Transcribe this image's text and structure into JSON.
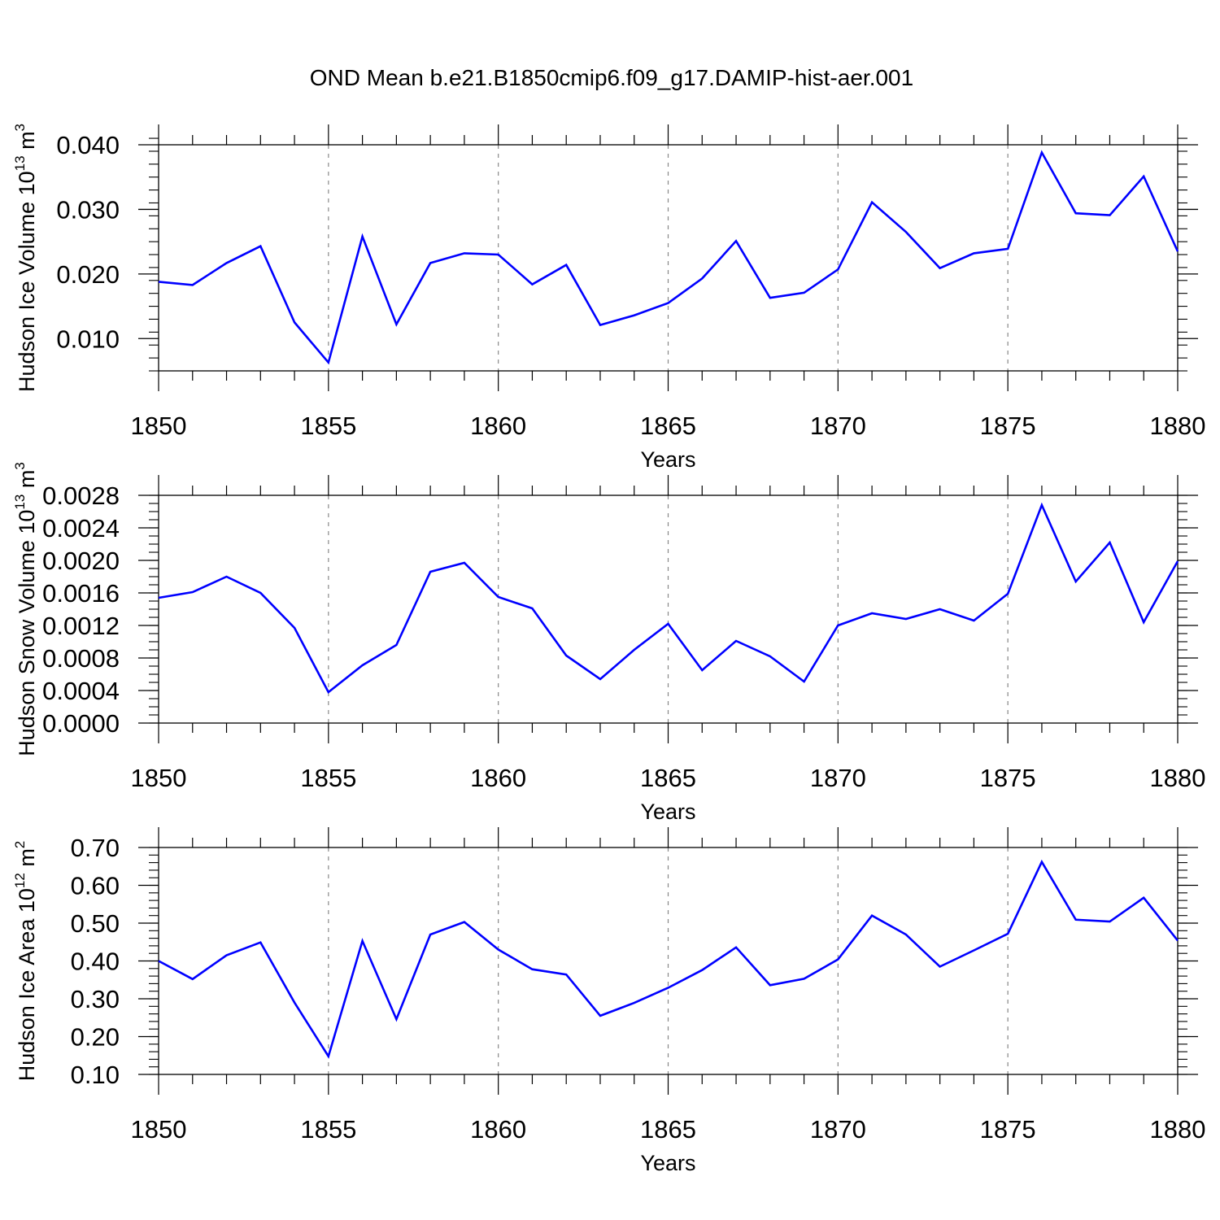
{
  "title": "OND Mean b.e21.B1850cmip6.f09_g17.DAMIP-hist-aer.001",
  "line_color": "#0000ff",
  "chart_data": [
    {
      "type": "line",
      "ylabel_main": "Hudson Ice Volume 10",
      "ylabel_exp": "13",
      "ylabel_unit": " m",
      "ylabel_unit_exp": "3",
      "xlabel": "Years",
      "xlim": [
        1850,
        1880
      ],
      "ylim": [
        0.005,
        0.04
      ],
      "yticks": [
        0.01,
        0.02,
        0.03,
        0.04
      ],
      "ytick_labels": [
        "0.010",
        "0.020",
        "0.030",
        "0.040"
      ],
      "yminor_step": 0.002,
      "xticks": [
        1850,
        1855,
        1860,
        1865,
        1870,
        1875,
        1880
      ],
      "xtick_labels": [
        "1850",
        "1855",
        "1860",
        "1865",
        "1870",
        "1875",
        "1880"
      ],
      "x": [
        1850,
        1851,
        1852,
        1853,
        1854,
        1855,
        1856,
        1857,
        1858,
        1859,
        1860,
        1861,
        1862,
        1863,
        1864,
        1865,
        1866,
        1867,
        1868,
        1869,
        1870,
        1871,
        1872,
        1873,
        1874,
        1875,
        1876,
        1877,
        1878,
        1879,
        1880
      ],
      "values": [
        0.0188,
        0.0183,
        0.0217,
        0.0243,
        0.0125,
        0.0063,
        0.0258,
        0.0122,
        0.0217,
        0.0232,
        0.023,
        0.0184,
        0.0214,
        0.0121,
        0.0136,
        0.0155,
        0.0193,
        0.0251,
        0.0163,
        0.0171,
        0.0207,
        0.0311,
        0.0265,
        0.0209,
        0.0232,
        0.0239,
        0.0388,
        0.0294,
        0.0291,
        0.0351,
        0.0235
      ]
    },
    {
      "type": "line",
      "ylabel_main": "Hudson Snow Volume 10",
      "ylabel_exp": "13",
      "ylabel_unit": " m",
      "ylabel_unit_exp": "3",
      "xlabel": "Years",
      "xlim": [
        1850,
        1880
      ],
      "ylim": [
        0.0,
        0.0028
      ],
      "yticks": [
        0.0,
        0.0004,
        0.0008,
        0.0012,
        0.0016,
        0.002,
        0.0024,
        0.0028
      ],
      "ytick_labels": [
        "0.0000",
        "0.0004",
        "0.0008",
        "0.0012",
        "0.0016",
        "0.0020",
        "0.0024",
        "0.0028"
      ],
      "yminor_step": 0.0001,
      "xticks": [
        1850,
        1855,
        1860,
        1865,
        1870,
        1875,
        1880
      ],
      "xtick_labels": [
        "1850",
        "1855",
        "1860",
        "1865",
        "1870",
        "1875",
        "1880"
      ],
      "x": [
        1850,
        1851,
        1852,
        1853,
        1854,
        1855,
        1856,
        1857,
        1858,
        1859,
        1860,
        1861,
        1862,
        1863,
        1864,
        1865,
        1866,
        1867,
        1868,
        1869,
        1870,
        1871,
        1872,
        1873,
        1874,
        1875,
        1876,
        1877,
        1878,
        1879,
        1880
      ],
      "values": [
        0.00154,
        0.00161,
        0.0018,
        0.0016,
        0.00117,
        0.00038,
        0.00071,
        0.00096,
        0.00186,
        0.00197,
        0.00155,
        0.00141,
        0.00083,
        0.00054,
        0.0009,
        0.00122,
        0.00065,
        0.00101,
        0.00082,
        0.00051,
        0.0012,
        0.00135,
        0.00128,
        0.0014,
        0.00126,
        0.00159,
        0.00268,
        0.00174,
        0.00222,
        0.00124,
        0.00199
      ]
    },
    {
      "type": "line",
      "ylabel_main": "Hudson Ice Area 10",
      "ylabel_exp": "12",
      "ylabel_unit": " m",
      "ylabel_unit_exp": "2",
      "xlabel": "Years",
      "xlim": [
        1850,
        1880
      ],
      "ylim": [
        0.1,
        0.7
      ],
      "yticks": [
        0.1,
        0.2,
        0.3,
        0.4,
        0.5,
        0.6,
        0.7
      ],
      "ytick_labels": [
        "0.10",
        "0.20",
        "0.30",
        "0.40",
        "0.50",
        "0.60",
        "0.70"
      ],
      "yminor_step": 0.02,
      "xticks": [
        1850,
        1855,
        1860,
        1865,
        1870,
        1875,
        1880
      ],
      "xtick_labels": [
        "1850",
        "1855",
        "1860",
        "1865",
        "1870",
        "1875",
        "1880"
      ],
      "x": [
        1850,
        1851,
        1852,
        1853,
        1854,
        1855,
        1856,
        1857,
        1858,
        1859,
        1860,
        1861,
        1862,
        1863,
        1864,
        1865,
        1866,
        1867,
        1868,
        1869,
        1870,
        1871,
        1872,
        1873,
        1874,
        1875,
        1876,
        1877,
        1878,
        1879,
        1880
      ],
      "values": [
        0.4,
        0.352,
        0.415,
        0.449,
        0.29,
        0.148,
        0.453,
        0.246,
        0.47,
        0.503,
        0.43,
        0.378,
        0.364,
        0.255,
        0.289,
        0.329,
        0.376,
        0.436,
        0.336,
        0.353,
        0.404,
        0.52,
        0.47,
        0.385,
        0.428,
        0.472,
        0.662,
        0.509,
        0.504,
        0.567,
        0.454
      ]
    }
  ]
}
